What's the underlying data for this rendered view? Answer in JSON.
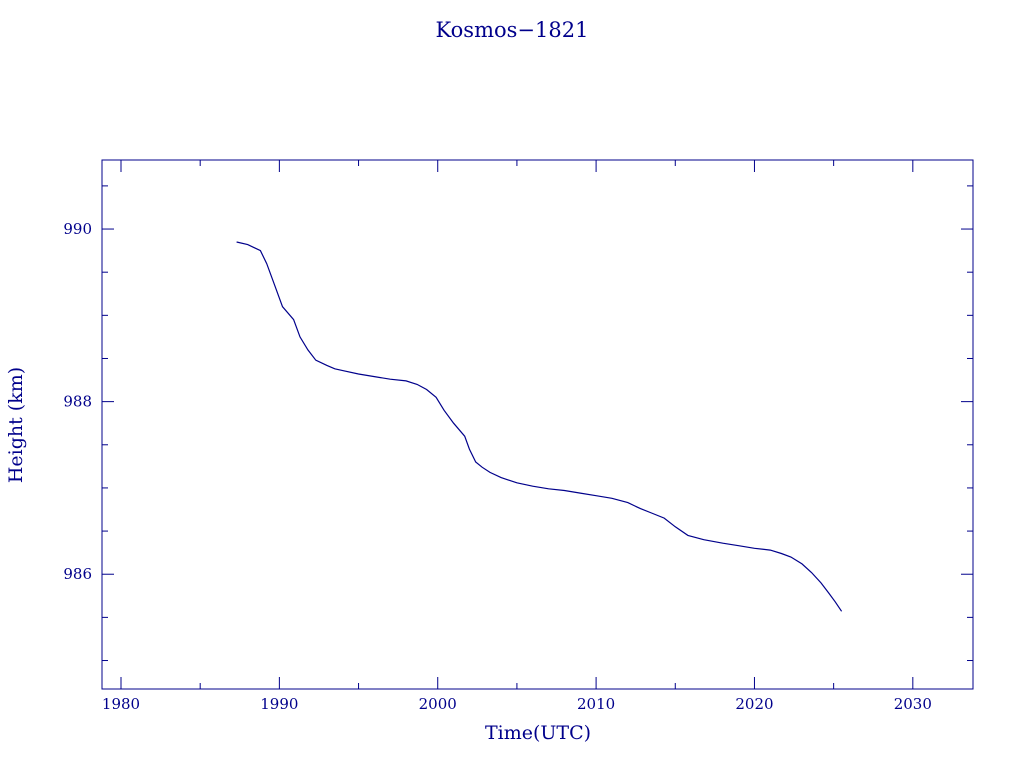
{
  "chart_data": {
    "type": "line",
    "title": "Kosmos−1821",
    "xlabel": "Time(UTC)",
    "ylabel": "Height (km)",
    "xlim": [
      1978.8,
      2033.8
    ],
    "ylim": [
      984.67,
      990.8
    ],
    "x_ticks": [
      1980,
      1990,
      2000,
      2010,
      2020,
      2030
    ],
    "y_ticks": [
      986,
      988,
      990
    ],
    "grid": false,
    "color": "#00008b",
    "series": [
      {
        "x": [
          1987.3,
          1988.0,
          1988.8,
          1989.2,
          1989.7,
          1990.2,
          1990.9,
          1991.3,
          1991.8,
          1992.3,
          1993.0,
          1993.5,
          1994.0,
          1995.0,
          1996.0,
          1997.0,
          1998.0,
          1998.7,
          1999.3,
          1999.9,
          2000.4,
          2001.0,
          2001.7,
          2002.0,
          2002.4,
          2002.8,
          2003.3,
          2004.0,
          2005.0,
          2006.0,
          2007.0,
          2008.0,
          2009.0,
          2010.0,
          2011.0,
          2012.0,
          2012.8,
          2013.5,
          2014.3,
          2015.0,
          2015.8,
          2016.8,
          2018.0,
          2019.0,
          2020.0,
          2021.0,
          2021.7,
          2022.3,
          2023.0,
          2023.6,
          2024.2,
          2024.7,
          2025.1,
          2025.5
        ],
        "y": [
          989.85,
          989.82,
          989.75,
          989.6,
          989.35,
          989.1,
          988.95,
          988.75,
          988.6,
          988.48,
          988.42,
          988.38,
          988.36,
          988.32,
          988.29,
          988.26,
          988.24,
          988.2,
          988.14,
          988.05,
          987.9,
          987.75,
          987.6,
          987.45,
          987.3,
          987.24,
          987.18,
          987.12,
          987.06,
          987.02,
          986.99,
          986.97,
          986.94,
          986.91,
          986.88,
          986.83,
          986.76,
          986.71,
          986.65,
          986.55,
          986.45,
          986.4,
          986.36,
          986.33,
          986.3,
          986.28,
          986.24,
          986.2,
          986.12,
          986.02,
          985.9,
          985.78,
          985.68,
          985.57
        ]
      }
    ]
  }
}
